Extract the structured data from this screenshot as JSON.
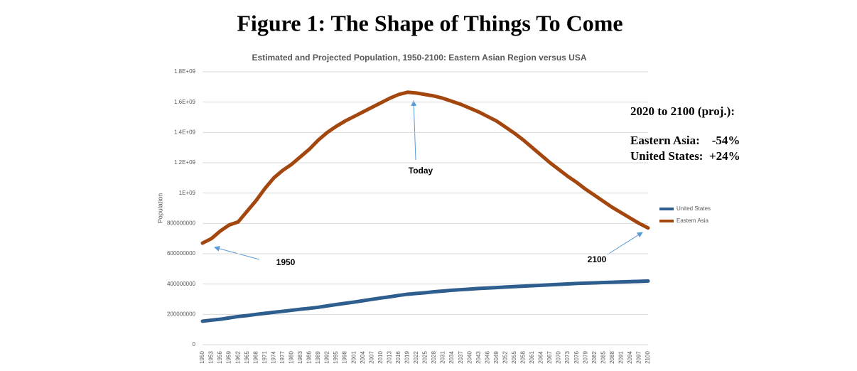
{
  "figure_title": "Figure 1: The Shape of Things To Come",
  "chart_data": {
    "type": "line",
    "title": "Estimated and Projected Population, 1950-2100: Eastern Asian Region versus USA",
    "y_label": "Population",
    "categories": [
      "1950",
      "1953",
      "1956",
      "1959",
      "1962",
      "1965",
      "1968",
      "1971",
      "1974",
      "1977",
      "1980",
      "1983",
      "1986",
      "1989",
      "1992",
      "1995",
      "1998",
      "2001",
      "2004",
      "2007",
      "2010",
      "2013",
      "2016",
      "2019",
      "2022",
      "2025",
      "2028",
      "2031",
      "2034",
      "2037",
      "2040",
      "2043",
      "2046",
      "2049",
      "2052",
      "2055",
      "2058",
      "2061",
      "2064",
      "2067",
      "2070",
      "2073",
      "2076",
      "2079",
      "2082",
      "2085",
      "2088",
      "2091",
      "2094",
      "2097",
      "2100"
    ],
    "series": [
      {
        "name": "United States",
        "color": "#2e5e8e",
        "values": [
          155000000,
          162000000,
          168000000,
          177000000,
          186000000,
          192000000,
          200000000,
          207000000,
          214000000,
          220000000,
          227000000,
          234000000,
          240000000,
          247000000,
          256000000,
          265000000,
          273000000,
          281000000,
          290000000,
          299000000,
          308000000,
          316000000,
          325000000,
          333000000,
          338000000,
          343000000,
          349000000,
          354000000,
          359000000,
          363000000,
          367000000,
          371000000,
          374000000,
          377000000,
          380000000,
          383000000,
          386000000,
          389000000,
          392000000,
          395000000,
          398000000,
          401000000,
          404000000,
          406000000,
          408000000,
          410000000,
          412000000,
          414000000,
          416000000,
          418000000,
          420000000
        ]
      },
      {
        "name": "Eastern Asia",
        "color": "#a4470f",
        "values": [
          670000000,
          700000000,
          750000000,
          790000000,
          810000000,
          880000000,
          950000000,
          1030000000,
          1100000000,
          1150000000,
          1190000000,
          1240000000,
          1290000000,
          1350000000,
          1400000000,
          1440000000,
          1475000000,
          1505000000,
          1535000000,
          1565000000,
          1595000000,
          1625000000,
          1650000000,
          1665000000,
          1660000000,
          1650000000,
          1640000000,
          1625000000,
          1605000000,
          1585000000,
          1560000000,
          1535000000,
          1505000000,
          1475000000,
          1435000000,
          1395000000,
          1350000000,
          1300000000,
          1250000000,
          1200000000,
          1155000000,
          1110000000,
          1070000000,
          1025000000,
          985000000,
          945000000,
          905000000,
          870000000,
          835000000,
          800000000,
          770000000
        ]
      }
    ],
    "ylim": [
      0,
      1800000000
    ],
    "yticks": [
      0,
      200000000,
      400000000,
      600000000,
      800000000,
      {
        "value": 1000000000,
        "label": "1E+09"
      },
      {
        "value": 1200000000,
        "label": "1.2E+09"
      },
      {
        "value": 1400000000,
        "label": "1.4E+09"
      },
      {
        "value": 1600000000,
        "label": "1.6E+09"
      },
      {
        "value": 1800000000,
        "label": "1.8E+09"
      }
    ],
    "grid": true,
    "legend": "right",
    "annotations": [
      "Today",
      "1950",
      "2100"
    ],
    "note": [
      "2020 to 2100 (proj.):",
      "Eastern Asia:    -54%",
      "United States:  +24%"
    ]
  }
}
